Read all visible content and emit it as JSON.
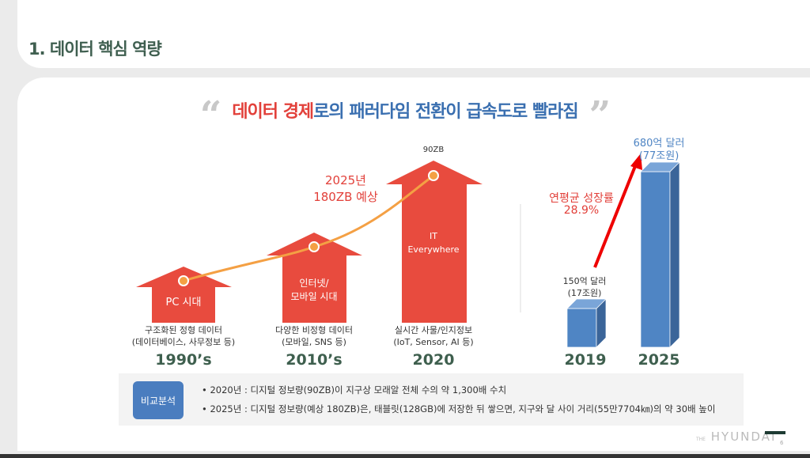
{
  "header": {
    "title": "1. 데이터 핵심 역량"
  },
  "headline": {
    "open_quote": "“",
    "red": "데이터 경제",
    "rest": "로의 패러다임 전환이 급속도로 빨라짐",
    "close_quote": "”"
  },
  "eras": [
    {
      "inner": "PC 시대",
      "desc1": "구조화된 정형 데이터",
      "desc2": "(데이터베이스, 사무정보 등)",
      "year": "1990’s"
    },
    {
      "inner": "인터넷/\n모바일 시대",
      "desc1": "다양한 비정형 데이터",
      "desc2": "(모바일, SNS 등)",
      "year": "2010’s"
    },
    {
      "inner": "IT\nEverywhere",
      "desc1": "실시간 사물/인지정보",
      "desc2": "(IoT, Sensor, AI 등)",
      "year": "2020",
      "top": "90ZB"
    }
  ],
  "forecast": {
    "line1": "2025년",
    "line2": "180ZB 예상"
  },
  "market": {
    "growth_label": "연평균 성장률",
    "growth_value": "28.9%",
    "bars": [
      {
        "year": "2019",
        "value_usd": "150억 달러",
        "value_krw": "(17조원)",
        "amount": 150
      },
      {
        "year": "2025",
        "value_usd": "680억 달러",
        "value_krw": "(77조원)",
        "amount": 680
      }
    ]
  },
  "comparison": {
    "badge": "비교분석",
    "notes": [
      "• 2020년 : 디지털 정보량(90ZB)이 지구상 모래알 전체 수의 약 1,300배 수치",
      "• 2025년 : 디지털 정보량(예상 180ZB)은, 태블릿(128GB)에 저장한 뒤 쌓으면, 지구와 달 사이 거리(55만7704㎞)의 약 30배 높이"
    ]
  },
  "footer": {
    "brand_small": "THE",
    "brand": "HYUNDAI",
    "page": "6"
  },
  "colors": {
    "red": "#e84b3e",
    "blue": "#4f85c4",
    "orange": "#f4a044",
    "green": "#3e5f4e"
  }
}
